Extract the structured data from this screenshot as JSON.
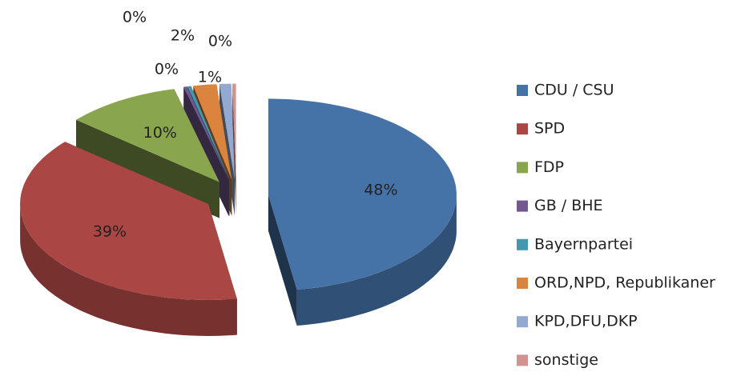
{
  "chart_data": {
    "type": "pie3d",
    "categories": [
      "CDU / CSU",
      "SPD",
      "FDP",
      "GB / BHE",
      "Bayernpartei",
      "ORD,NPD, Republikaner",
      "KPD,DFU,DKP",
      "sonstige"
    ],
    "values": [
      48,
      39,
      10,
      0.3,
      0.3,
      2,
      1,
      0.3
    ],
    "value_labels": [
      "48%",
      "39%",
      "10%",
      "0%",
      "0%",
      "2%",
      "1%",
      "0%"
    ],
    "colors": [
      "#4572a7",
      "#aa4643",
      "#89a54e",
      "#71588f",
      "#4198af",
      "#db843d",
      "#93a9cf",
      "#d19392"
    ],
    "legend": "right"
  }
}
